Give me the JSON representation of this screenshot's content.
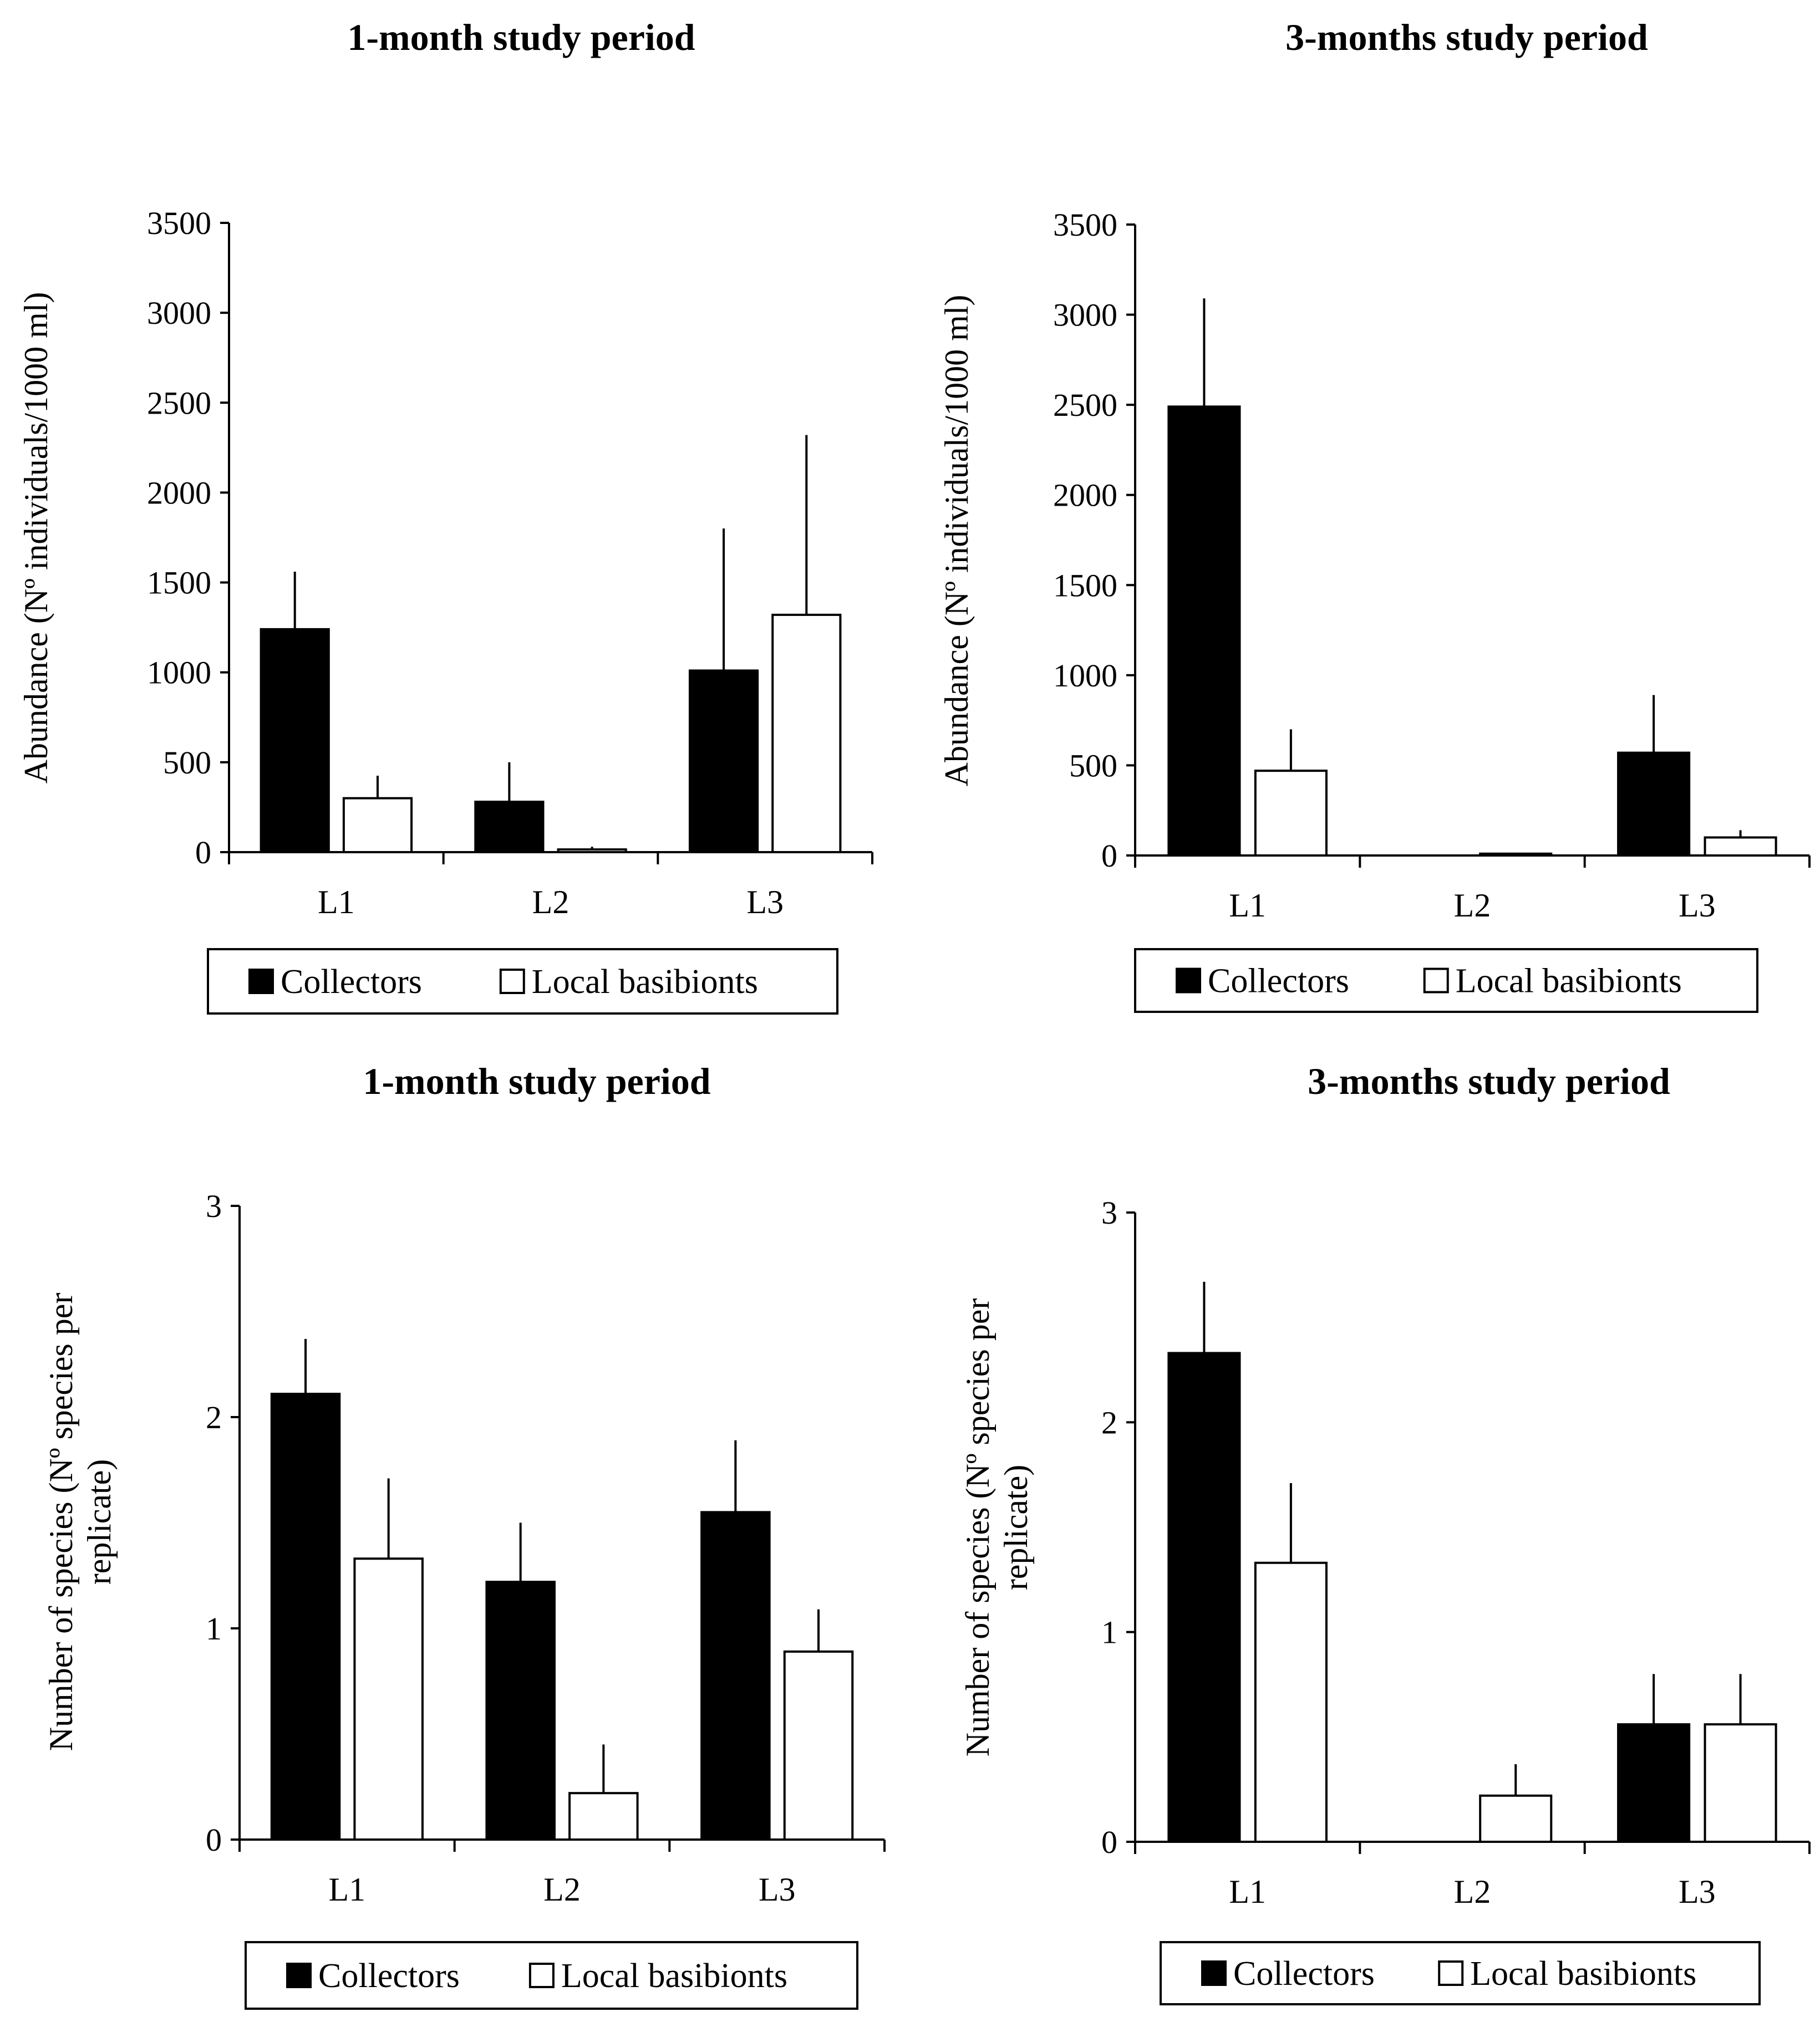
{
  "colors": {
    "collectors": "#000000",
    "local_basibionts": "#ffffff",
    "axis": "#000000",
    "background": "#ffffff"
  },
  "chart_data": [
    {
      "type": "bar",
      "title": "1-month study period",
      "xlabel": "",
      "ylabel": "Abundance (Nº individuals/1000 ml)",
      "categories": [
        "L1",
        "L2",
        "L3"
      ],
      "ylim": [
        0,
        3500
      ],
      "yticks": [
        0,
        500,
        1000,
        1500,
        2000,
        2500,
        3000,
        3500
      ],
      "ytick_labels": [
        "0",
        "500",
        "1000",
        "1500",
        "2000",
        "2500",
        "3000",
        "3500"
      ],
      "series": [
        {
          "name": "Collectors",
          "values": [
            1240,
            280,
            1010
          ],
          "errors": [
            320,
            220,
            790
          ]
        },
        {
          "name": "Local basibionts",
          "values": [
            300,
            15,
            1320
          ],
          "errors": [
            125,
            15,
            1000
          ]
        }
      ],
      "legend": {
        "position": "bottom",
        "labels": [
          "Collectors",
          "Local basibionts"
        ]
      },
      "grid": false
    },
    {
      "type": "bar",
      "title": "3-months study period",
      "xlabel": "",
      "ylabel": "Abundance (Nº individuals/1000 ml)",
      "categories": [
        "L1",
        "L2",
        "L3"
      ],
      "ylim": [
        0,
        3500
      ],
      "yticks": [
        0,
        500,
        1000,
        1500,
        2000,
        2500,
        3000,
        3500
      ],
      "ytick_labels": [
        "0",
        "500",
        "1000",
        "1500",
        "2000",
        "2500",
        "3000",
        "3500"
      ],
      "series": [
        {
          "name": "Collectors",
          "values": [
            2490,
            0,
            570
          ],
          "errors": [
            600,
            0,
            320
          ]
        },
        {
          "name": "Local basibionts",
          "values": [
            470,
            10,
            100
          ],
          "errors": [
            230,
            5,
            40
          ]
        }
      ],
      "legend": {
        "position": "bottom",
        "labels": [
          "Collectors",
          "Local basibionts"
        ]
      },
      "grid": false
    },
    {
      "type": "bar",
      "title": "1-month study period",
      "xlabel": "",
      "ylabel": "Number of species (Nº species per replicate)",
      "ylabel_lines": [
        "Number of species (Nº species per",
        "replicate)"
      ],
      "categories": [
        "L1",
        "L2",
        "L3"
      ],
      "ylim": [
        0,
        3
      ],
      "yticks": [
        0,
        1,
        2,
        3
      ],
      "ytick_labels": [
        "0",
        "1",
        "2",
        "3"
      ],
      "series": [
        {
          "name": "Collectors",
          "values": [
            2.11,
            1.22,
            1.55
          ],
          "errors": [
            0.26,
            0.28,
            0.34
          ]
        },
        {
          "name": "Local basibionts",
          "values": [
            1.33,
            0.22,
            0.89
          ],
          "errors": [
            0.38,
            0.23,
            0.2
          ]
        }
      ],
      "legend": {
        "position": "bottom",
        "labels": [
          "Collectors",
          "Local basibionts"
        ]
      },
      "grid": false
    },
    {
      "type": "bar",
      "title": "3-months study period",
      "xlabel": "",
      "ylabel": "Number of species (Nº species per replicate)",
      "ylabel_lines": [
        "Number of species (Nº species per",
        "replicate)"
      ],
      "categories": [
        "L1",
        "L2",
        "L3"
      ],
      "ylim": [
        0,
        3
      ],
      "yticks": [
        0,
        1,
        2,
        3
      ],
      "ytick_labels": [
        "0",
        "1",
        "2",
        "3"
      ],
      "series": [
        {
          "name": "Collectors",
          "values": [
            2.33,
            0,
            0.56
          ],
          "errors": [
            0.34,
            0,
            0.24
          ]
        },
        {
          "name": "Local basibionts",
          "values": [
            1.33,
            0.22,
            0.56
          ],
          "errors": [
            0.38,
            0.15,
            0.24
          ]
        }
      ],
      "legend": {
        "position": "bottom",
        "labels": [
          "Collectors",
          "Local basibionts"
        ]
      },
      "grid": false
    }
  ]
}
